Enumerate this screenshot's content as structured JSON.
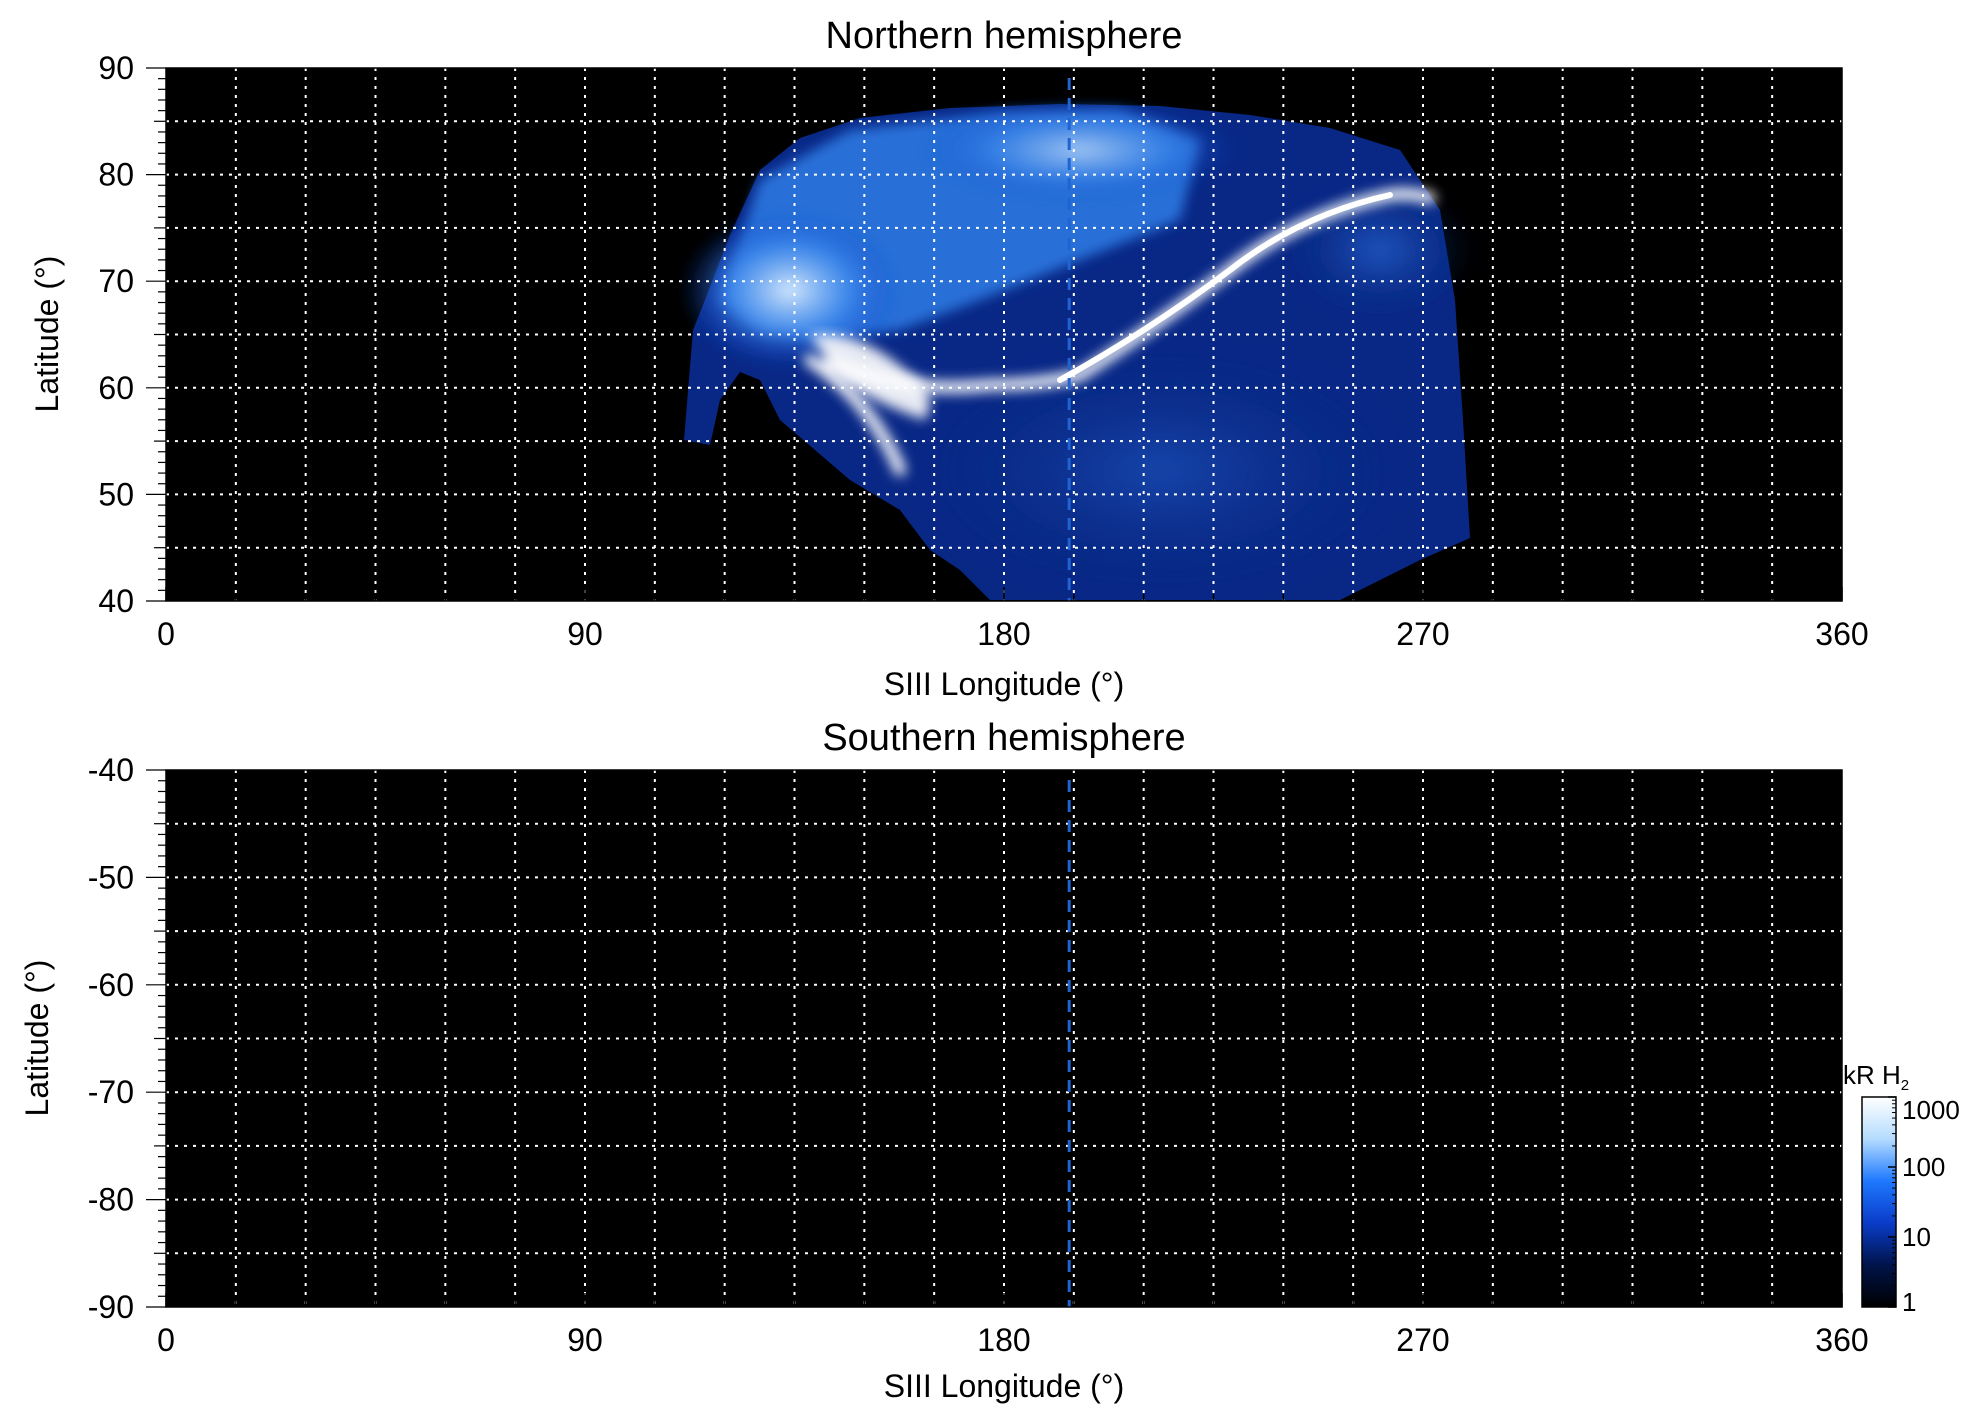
{
  "figure": {
    "colors": {
      "background": "#000000",
      "grid": "#ffffff",
      "axis": "#000000",
      "meridian": "#1e64d2",
      "auroral_blue": "#1f6fe6",
      "auroral_bright": "#e8f4ff"
    }
  },
  "chart_data": [
    {
      "type": "heatmap",
      "title": "Northern hemisphere",
      "xlabel": "SIII Longitude (°)",
      "ylabel": "Latitude (°)",
      "xlim": [
        0,
        360
      ],
      "ylim": [
        40,
        90
      ],
      "xticks": [
        0,
        90,
        180,
        270,
        360
      ],
      "yticks": [
        40,
        50,
        60,
        70,
        80,
        90
      ],
      "grid": true,
      "grid_x_spacing": 15,
      "grid_y_spacing": 5,
      "reference_longitude": 194,
      "coverage_lon_range": [
        110,
        280
      ],
      "main_oval": {
        "description_values": [
          [
            160,
            57
          ],
          [
            175,
            61
          ],
          [
            190,
            61
          ],
          [
            200,
            61
          ],
          [
            215,
            64
          ],
          [
            230,
            68
          ],
          [
            245,
            73
          ],
          [
            260,
            76
          ],
          [
            270,
            77
          ]
        ]
      }
    },
    {
      "type": "heatmap",
      "title": "Southern hemisphere",
      "xlabel": "SIII Longitude (°)",
      "ylabel": "Latitude (°)",
      "xlim": [
        0,
        360
      ],
      "ylim": [
        -90,
        -40
      ],
      "xticks": [
        0,
        90,
        180,
        270,
        360
      ],
      "yticks": [
        -40,
        -50,
        -60,
        -70,
        -80,
        -90
      ],
      "grid": true,
      "grid_x_spacing": 15,
      "grid_y_spacing": 5,
      "reference_longitude": 194
    }
  ],
  "colorbar": {
    "label": "kR H",
    "label_subscript": "2",
    "scale": "log",
    "range": [
      1,
      1000
    ],
    "ticks": [
      1,
      10,
      100,
      1000
    ],
    "tick_labels": [
      "1",
      "10",
      "100",
      "1000"
    ],
    "colors": [
      "#000000",
      "#00144a",
      "#0a3cc8",
      "#1e78ff",
      "#b4dcff",
      "#ffffff"
    ]
  }
}
